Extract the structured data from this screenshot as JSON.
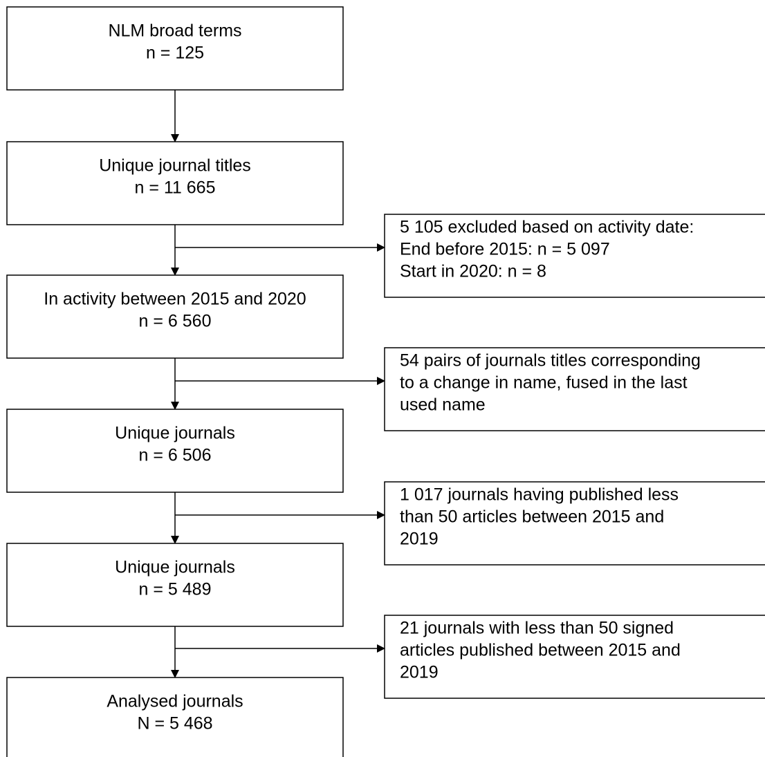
{
  "nodes": [
    {
      "lines": [
        "NLM broad terms",
        "n = 125"
      ]
    },
    {
      "lines": [
        "Unique journal titles",
        "n = 11 665"
      ]
    },
    {
      "lines": [
        "In activity between 2015 and 2020",
        "n = 6 560"
      ]
    },
    {
      "lines": [
        "Unique journals",
        "n = 6 506"
      ]
    },
    {
      "lines": [
        "Unique journals",
        "n = 5 489"
      ]
    },
    {
      "lines": [
        "Analysed journals",
        "N = 5 468"
      ]
    }
  ],
  "exclusions": [
    {
      "lines": [
        "5 105 excluded based on activity date:",
        "End before 2015: n = 5 097",
        "Start in 2020: n = 8"
      ]
    },
    {
      "lines": [
        "54 pairs of journals titles corresponding",
        "to a change in name, fused in the last",
        "used name"
      ]
    },
    {
      "lines": [
        "1 017 journals having published less",
        "than 50 articles between 2015 and",
        "2019"
      ]
    },
    {
      "lines": [
        "21 journals with less than 50 signed",
        "articles published between 2015 and",
        "2019"
      ]
    }
  ]
}
